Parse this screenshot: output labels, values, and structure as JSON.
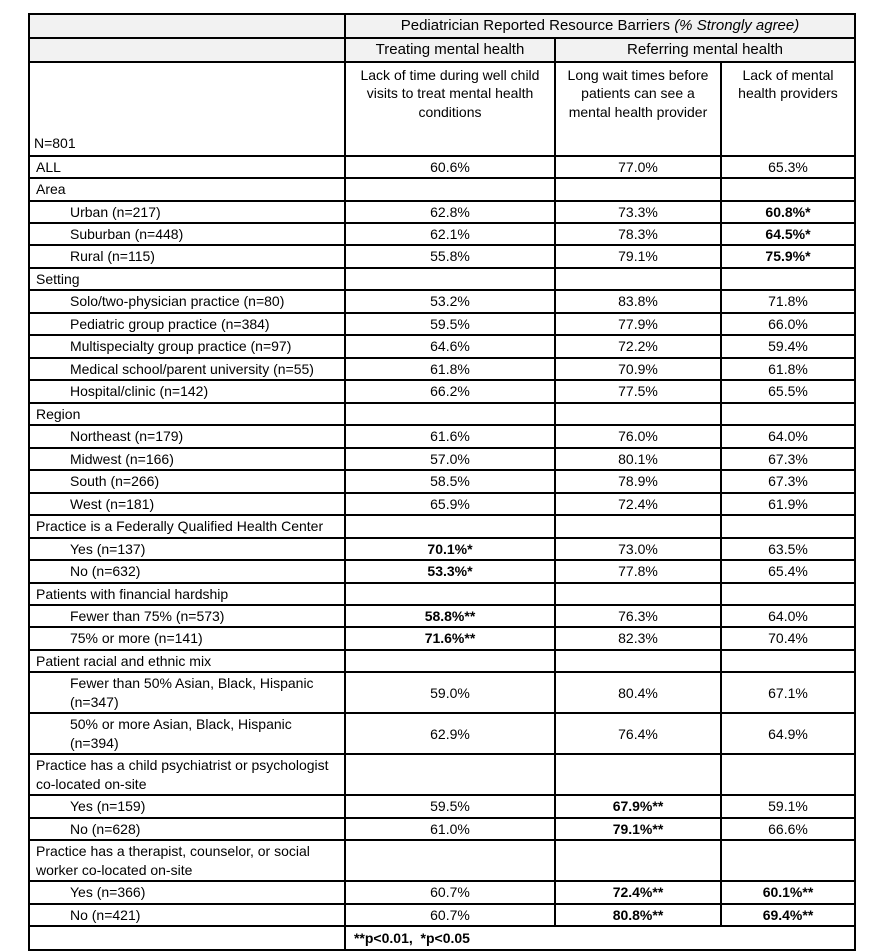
{
  "table": {
    "title_main": "Pediatrician Reported Resource Barriers ",
    "title_italic": "(% Strongly agree)",
    "group_treating": "Treating mental health",
    "group_referring": "Referring mental health",
    "n_label": "N=801",
    "col_headers": [
      "Lack of time during well child visits to treat mental health conditions",
      "Long wait times before patients can see a mental health provider",
      "Lack of mental health providers"
    ],
    "footnote": "**p<0.01,  *p<0.05",
    "rows": [
      {
        "type": "data",
        "indent": false,
        "label": "ALL",
        "values": [
          {
            "v": "60.6%"
          },
          {
            "v": "77.0%"
          },
          {
            "v": "65.3%"
          }
        ]
      },
      {
        "type": "section",
        "label": "Area"
      },
      {
        "type": "data",
        "indent": true,
        "label": "Urban (n=217)",
        "values": [
          {
            "v": "62.8%"
          },
          {
            "v": "73.3%"
          },
          {
            "v": "60.8%*",
            "b": true
          }
        ]
      },
      {
        "type": "data",
        "indent": true,
        "label": "Suburban (n=448)",
        "values": [
          {
            "v": "62.1%"
          },
          {
            "v": "78.3%"
          },
          {
            "v": "64.5%*",
            "b": true
          }
        ]
      },
      {
        "type": "data",
        "indent": true,
        "label": "Rural (n=115)",
        "values": [
          {
            "v": "55.8%"
          },
          {
            "v": "79.1%"
          },
          {
            "v": "75.9%*",
            "b": true
          }
        ]
      },
      {
        "type": "section",
        "label": "Setting"
      },
      {
        "type": "data",
        "indent": true,
        "label": "Solo/two-physician practice (n=80)",
        "values": [
          {
            "v": "53.2%"
          },
          {
            "v": "83.8%"
          },
          {
            "v": "71.8%"
          }
        ]
      },
      {
        "type": "data",
        "indent": true,
        "label": "Pediatric group practice (n=384)",
        "values": [
          {
            "v": "59.5%"
          },
          {
            "v": "77.9%"
          },
          {
            "v": "66.0%"
          }
        ]
      },
      {
        "type": "data",
        "indent": true,
        "label": "Multispecialty group practice (n=97)",
        "values": [
          {
            "v": "64.6%"
          },
          {
            "v": "72.2%"
          },
          {
            "v": "59.4%"
          }
        ]
      },
      {
        "type": "data",
        "indent": true,
        "label": "Medical school/parent university (n=55)",
        "values": [
          {
            "v": "61.8%"
          },
          {
            "v": "70.9%"
          },
          {
            "v": "61.8%"
          }
        ]
      },
      {
        "type": "data",
        "indent": true,
        "label": "Hospital/clinic (n=142)",
        "values": [
          {
            "v": "66.2%"
          },
          {
            "v": "77.5%"
          },
          {
            "v": "65.5%"
          }
        ]
      },
      {
        "type": "section",
        "label": "Region"
      },
      {
        "type": "data",
        "indent": true,
        "label": "Northeast (n=179)",
        "values": [
          {
            "v": "61.6%"
          },
          {
            "v": "76.0%"
          },
          {
            "v": "64.0%"
          }
        ]
      },
      {
        "type": "data",
        "indent": true,
        "label": "Midwest (n=166)",
        "values": [
          {
            "v": "57.0%"
          },
          {
            "v": "80.1%"
          },
          {
            "v": "67.3%"
          }
        ]
      },
      {
        "type": "data",
        "indent": true,
        "label": "South (n=266)",
        "values": [
          {
            "v": "58.5%"
          },
          {
            "v": "78.9%"
          },
          {
            "v": "67.3%"
          }
        ]
      },
      {
        "type": "data",
        "indent": true,
        "label": "West (n=181)",
        "values": [
          {
            "v": "65.9%"
          },
          {
            "v": "72.4%"
          },
          {
            "v": "61.9%"
          }
        ]
      },
      {
        "type": "section",
        "label": "Practice is a Federally Qualified Health Center"
      },
      {
        "type": "data",
        "indent": true,
        "label": "Yes (n=137)",
        "values": [
          {
            "v": "70.1%*",
            "b": true
          },
          {
            "v": "73.0%"
          },
          {
            "v": "63.5%"
          }
        ]
      },
      {
        "type": "data",
        "indent": true,
        "label": "No (n=632)",
        "values": [
          {
            "v": "53.3%*",
            "b": true
          },
          {
            "v": "77.8%"
          },
          {
            "v": "65.4%"
          }
        ]
      },
      {
        "type": "section",
        "label": "Patients with financial hardship"
      },
      {
        "type": "data",
        "indent": true,
        "label": "Fewer than 75% (n=573)",
        "values": [
          {
            "v": "58.8%**",
            "b": true
          },
          {
            "v": "76.3%"
          },
          {
            "v": "64.0%"
          }
        ]
      },
      {
        "type": "data",
        "indent": true,
        "label": "75% or more (n=141)",
        "values": [
          {
            "v": "71.6%**",
            "b": true
          },
          {
            "v": "82.3%"
          },
          {
            "v": "70.4%"
          }
        ]
      },
      {
        "type": "section",
        "label": "Patient racial and ethnic mix"
      },
      {
        "type": "data",
        "indent": true,
        "label": "Fewer than 50% Asian, Black, Hispanic (n=347)",
        "values": [
          {
            "v": "59.0%"
          },
          {
            "v": "80.4%"
          },
          {
            "v": "67.1%"
          }
        ]
      },
      {
        "type": "data",
        "indent": true,
        "label": "50% or more Asian, Black, Hispanic (n=394)",
        "values": [
          {
            "v": "62.9%"
          },
          {
            "v": "76.4%"
          },
          {
            "v": "64.9%"
          }
        ]
      },
      {
        "type": "section",
        "label": "Practice has a child psychiatrist or psychologist co-located on-site"
      },
      {
        "type": "data",
        "indent": true,
        "label": "Yes (n=159)",
        "values": [
          {
            "v": "59.5%"
          },
          {
            "v": "67.9%**",
            "b": true
          },
          {
            "v": "59.1%"
          }
        ]
      },
      {
        "type": "data",
        "indent": true,
        "label": "No (n=628)",
        "values": [
          {
            "v": "61.0%"
          },
          {
            "v": "79.1%**",
            "b": true
          },
          {
            "v": "66.6%"
          }
        ]
      },
      {
        "type": "section",
        "label": "Practice has a therapist, counselor, or social worker co-located on-site"
      },
      {
        "type": "data",
        "indent": true,
        "label": "Yes (n=366)",
        "values": [
          {
            "v": "60.7%"
          },
          {
            "v": "72.4%**",
            "b": true
          },
          {
            "v": "60.1%**",
            "b": true
          }
        ]
      },
      {
        "type": "data",
        "indent": true,
        "label": "No (n=421)",
        "values": [
          {
            "v": "60.7%"
          },
          {
            "v": "80.8%**",
            "b": true
          },
          {
            "v": "69.4%**",
            "b": true
          }
        ]
      }
    ]
  }
}
